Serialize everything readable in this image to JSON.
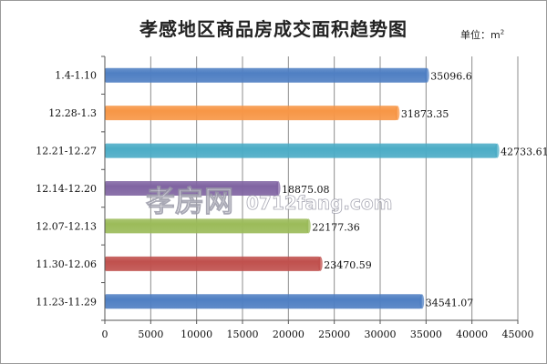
{
  "chart_data": {
    "type": "bar",
    "orientation": "horizontal",
    "title": "孝感地区商品房成交面积趋势图",
    "unit_label": "单位：m",
    "unit_superscript": "2",
    "categories": [
      "1.4-1.10",
      "12.28-1.3",
      "12.21-12.27",
      "12.14-12.20",
      "12.07-12.13",
      "11.30-12.06",
      "11.23-11.29"
    ],
    "values": [
      35096.6,
      31873.35,
      42733.61,
      18875.08,
      22177.36,
      23470.59,
      34541.07
    ],
    "value_labels": [
      "35096.6",
      "31873.35",
      "42733.61",
      "18875.08",
      "22177.36",
      "23470.59",
      "34541.07"
    ],
    "bar_colors": [
      "#4f7fc3",
      "#f79646",
      "#4bacc6",
      "#8064a2",
      "#9bbb59",
      "#c0504d",
      "#4f7fc3"
    ],
    "xlim": [
      0,
      45000
    ],
    "xticks": [
      0,
      5000,
      10000,
      15000,
      20000,
      25000,
      30000,
      35000,
      40000,
      45000
    ],
    "xtick_labels": [
      "0",
      "5000",
      "10000",
      "15000",
      "20000",
      "25000",
      "30000",
      "35000",
      "40000",
      "45000"
    ],
    "grid": "vertical",
    "xlabel": "",
    "ylabel": ""
  },
  "watermark": {
    "brand": "孝房网",
    "site": "0712fang.com"
  }
}
